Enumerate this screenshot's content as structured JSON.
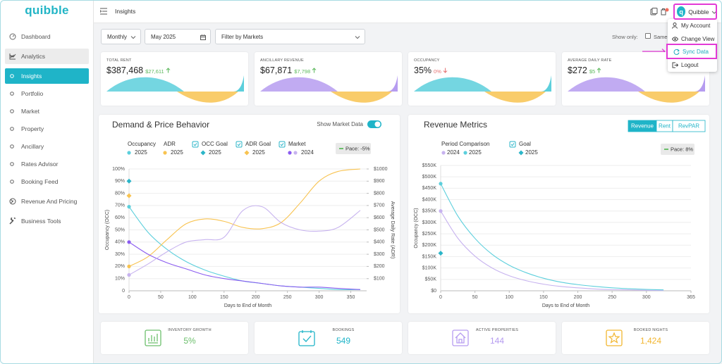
{
  "sidebar": {
    "logo": "quibble",
    "menu": [
      "Dashboard",
      "Analytics",
      "Insights",
      "Portfolio",
      "Market",
      "Property",
      "Ancillary",
      "Rates Advisor",
      "Booking Feed",
      "Revenue And Pricing",
      "Business Tools"
    ]
  },
  "header": {
    "title": "Insights",
    "user_initial": "q",
    "user": "Quibble"
  },
  "dropdown": [
    "My Account",
    "Change View",
    "Sync Data",
    "Logout"
  ],
  "filters": {
    "period": "Monthly",
    "date": "May 2025",
    "market": "Filter by Markets",
    "show_only": "Show only:",
    "same": "Same S"
  },
  "kpis": [
    {
      "label": "TOTAL RENT",
      "value": "$387,468",
      "change": "$27,611",
      "trend": "up"
    },
    {
      "label": "ANCILLARY REVENUE",
      "value": "$67,871",
      "change": "$7,798",
      "trend": "up"
    },
    {
      "label": "OCCUPANCY",
      "value": "35%",
      "change": "0%",
      "trend": "down"
    },
    {
      "label": "AVERAGE DAILY RATE",
      "value": "$272",
      "change": "$5",
      "trend": "up"
    }
  ],
  "stats": [
    {
      "label": "INVENTORY GROWTH",
      "value": "5%"
    },
    {
      "label": "BOOKINGS",
      "value": "549"
    },
    {
      "label": "ACTIVE PROPERTIES",
      "value": "144"
    },
    {
      "label": "BOOKED NIGHTS",
      "value": "1,424"
    }
  ],
  "chart_data": [
    {
      "type": "line",
      "title": "Demand & Price Behavior",
      "toggle_label": "Show Market Data",
      "show_market_data": true,
      "pace": "Pace: -5%",
      "xlabel": "Days to End of Month",
      "ylabel": "Occupancy (OCC)",
      "y2label": "Average Daily Rate (ADR)",
      "x": [
        0,
        30,
        60,
        90,
        120,
        150,
        180,
        210,
        240,
        270,
        300,
        330,
        365
      ],
      "xlim": [
        0,
        365
      ],
      "xticks": [
        0,
        50,
        100,
        150,
        200,
        250,
        300,
        350
      ],
      "ylim": [
        0,
        100
      ],
      "yticks": [
        0,
        {
          "value": 10,
          "label": "10%"
        },
        {
          "value": 20,
          "label": "20%"
        },
        {
          "value": 30,
          "label": "30%"
        },
        {
          "value": 40,
          "label": "40%"
        },
        {
          "value": 50,
          "label": "50%"
        },
        {
          "value": 60,
          "label": "60%"
        },
        {
          "value": 70,
          "label": "70%"
        },
        {
          "value": 80,
          "label": "80%"
        },
        {
          "value": 90,
          "label": "90%"
        },
        {
          "value": 100,
          "label": "100%"
        }
      ],
      "y2lim": [
        0,
        1000
      ],
      "y2ticks": [
        {
          "value": 100,
          "label": "$100"
        },
        {
          "value": 200,
          "label": "$200"
        },
        {
          "value": 300,
          "label": "$300"
        },
        {
          "value": 400,
          "label": "$400"
        },
        {
          "value": 500,
          "label": "$500"
        },
        {
          "value": 600,
          "label": "$600"
        },
        {
          "value": 700,
          "label": "$700"
        },
        {
          "value": 800,
          "label": "$800"
        },
        {
          "value": 900,
          "label": "$900"
        },
        {
          "value": 1000,
          "label": "$1000"
        }
      ],
      "series": [
        {
          "name": "Occupancy",
          "period": "2025",
          "color": "#5ccfdc",
          "values": [
            69,
            48,
            34,
            24,
            17,
            12,
            8,
            6,
            4,
            3,
            2,
            1,
            1
          ]
        },
        {
          "name": "ADR",
          "period": "2025",
          "color": "#f8c350",
          "axis": "y2",
          "values": [
            200,
            280,
            420,
            550,
            590,
            570,
            520,
            510,
            560,
            720,
            900,
            980,
            1000
          ]
        },
        {
          "name": "Market",
          "period": "2024",
          "color": "#8b5cf0",
          "checked": true,
          "values": [
            40,
            30,
            23,
            18,
            13,
            10,
            8,
            6,
            4,
            3,
            3,
            2,
            1
          ]
        },
        {
          "color": "#c7b3ef",
          "axis": "y2",
          "values": [
            130,
            220,
            320,
            400,
            420,
            440,
            660,
            690,
            560,
            500,
            490,
            520,
            660
          ]
        }
      ],
      "goals": [
        {
          "name": "OCC Goal",
          "period": "2025",
          "color": "#2bb5c8",
          "checked": true,
          "value": 90
        },
        {
          "name": "ADR Goal",
          "period": "2025",
          "color": "#f8c350",
          "checked": true,
          "axis": "y2",
          "value": 780
        }
      ]
    },
    {
      "type": "line",
      "title": "Revenue Metrics",
      "tabs": [
        "Revenue",
        "Rent",
        "RevPAR"
      ],
      "active_tab": "Revenue",
      "pace": "Pace: 8%",
      "xlabel": "Days to End of Month",
      "ylabel": "Occupancy (OCC)",
      "legend_title": "Period Comparison",
      "x": [
        0,
        25,
        50,
        75,
        100,
        125,
        150,
        175,
        200,
        225,
        250,
        275,
        300,
        325
      ],
      "xlim": [
        0,
        365
      ],
      "xticks": [
        0,
        50,
        100,
        150,
        200,
        250,
        300,
        365
      ],
      "ylim": [
        0,
        550000
      ],
      "yticks": [
        {
          "value": 0,
          "label": "$0"
        },
        {
          "value": 50000,
          "label": "$50K"
        },
        {
          "value": 100000,
          "label": "$100K"
        },
        {
          "value": 150000,
          "label": "$150K"
        },
        {
          "value": 200000,
          "label": "$200K"
        },
        {
          "value": 250000,
          "label": "$250K"
        },
        {
          "value": 300000,
          "label": "$300K"
        },
        {
          "value": 350000,
          "label": "$350K"
        },
        {
          "value": 400000,
          "label": "$400K"
        },
        {
          "value": 450000,
          "label": "$450K"
        },
        {
          "value": 500000,
          "label": "$500K"
        },
        {
          "value": 550000,
          "label": "$550K"
        }
      ],
      "series": [
        {
          "name": "2024",
          "color": "#c7b3ef",
          "values": [
            350000,
            231000,
            152000,
            100000,
            66000,
            44000,
            29000,
            19000,
            13000,
            8000,
            5000,
            4000,
            2000,
            1000
          ]
        },
        {
          "name": "2025",
          "color": "#5ccfdc",
          "values": [
            470000,
            328000,
            230000,
            160000,
            112000,
            79000,
            55000,
            38000,
            27000,
            19000,
            13000,
            9000,
            6000,
            4000
          ]
        }
      ],
      "goals": [
        {
          "name": "Goal",
          "period": "2025",
          "color": "#2bb5c8",
          "checked": true,
          "value": 165000
        }
      ]
    }
  ]
}
